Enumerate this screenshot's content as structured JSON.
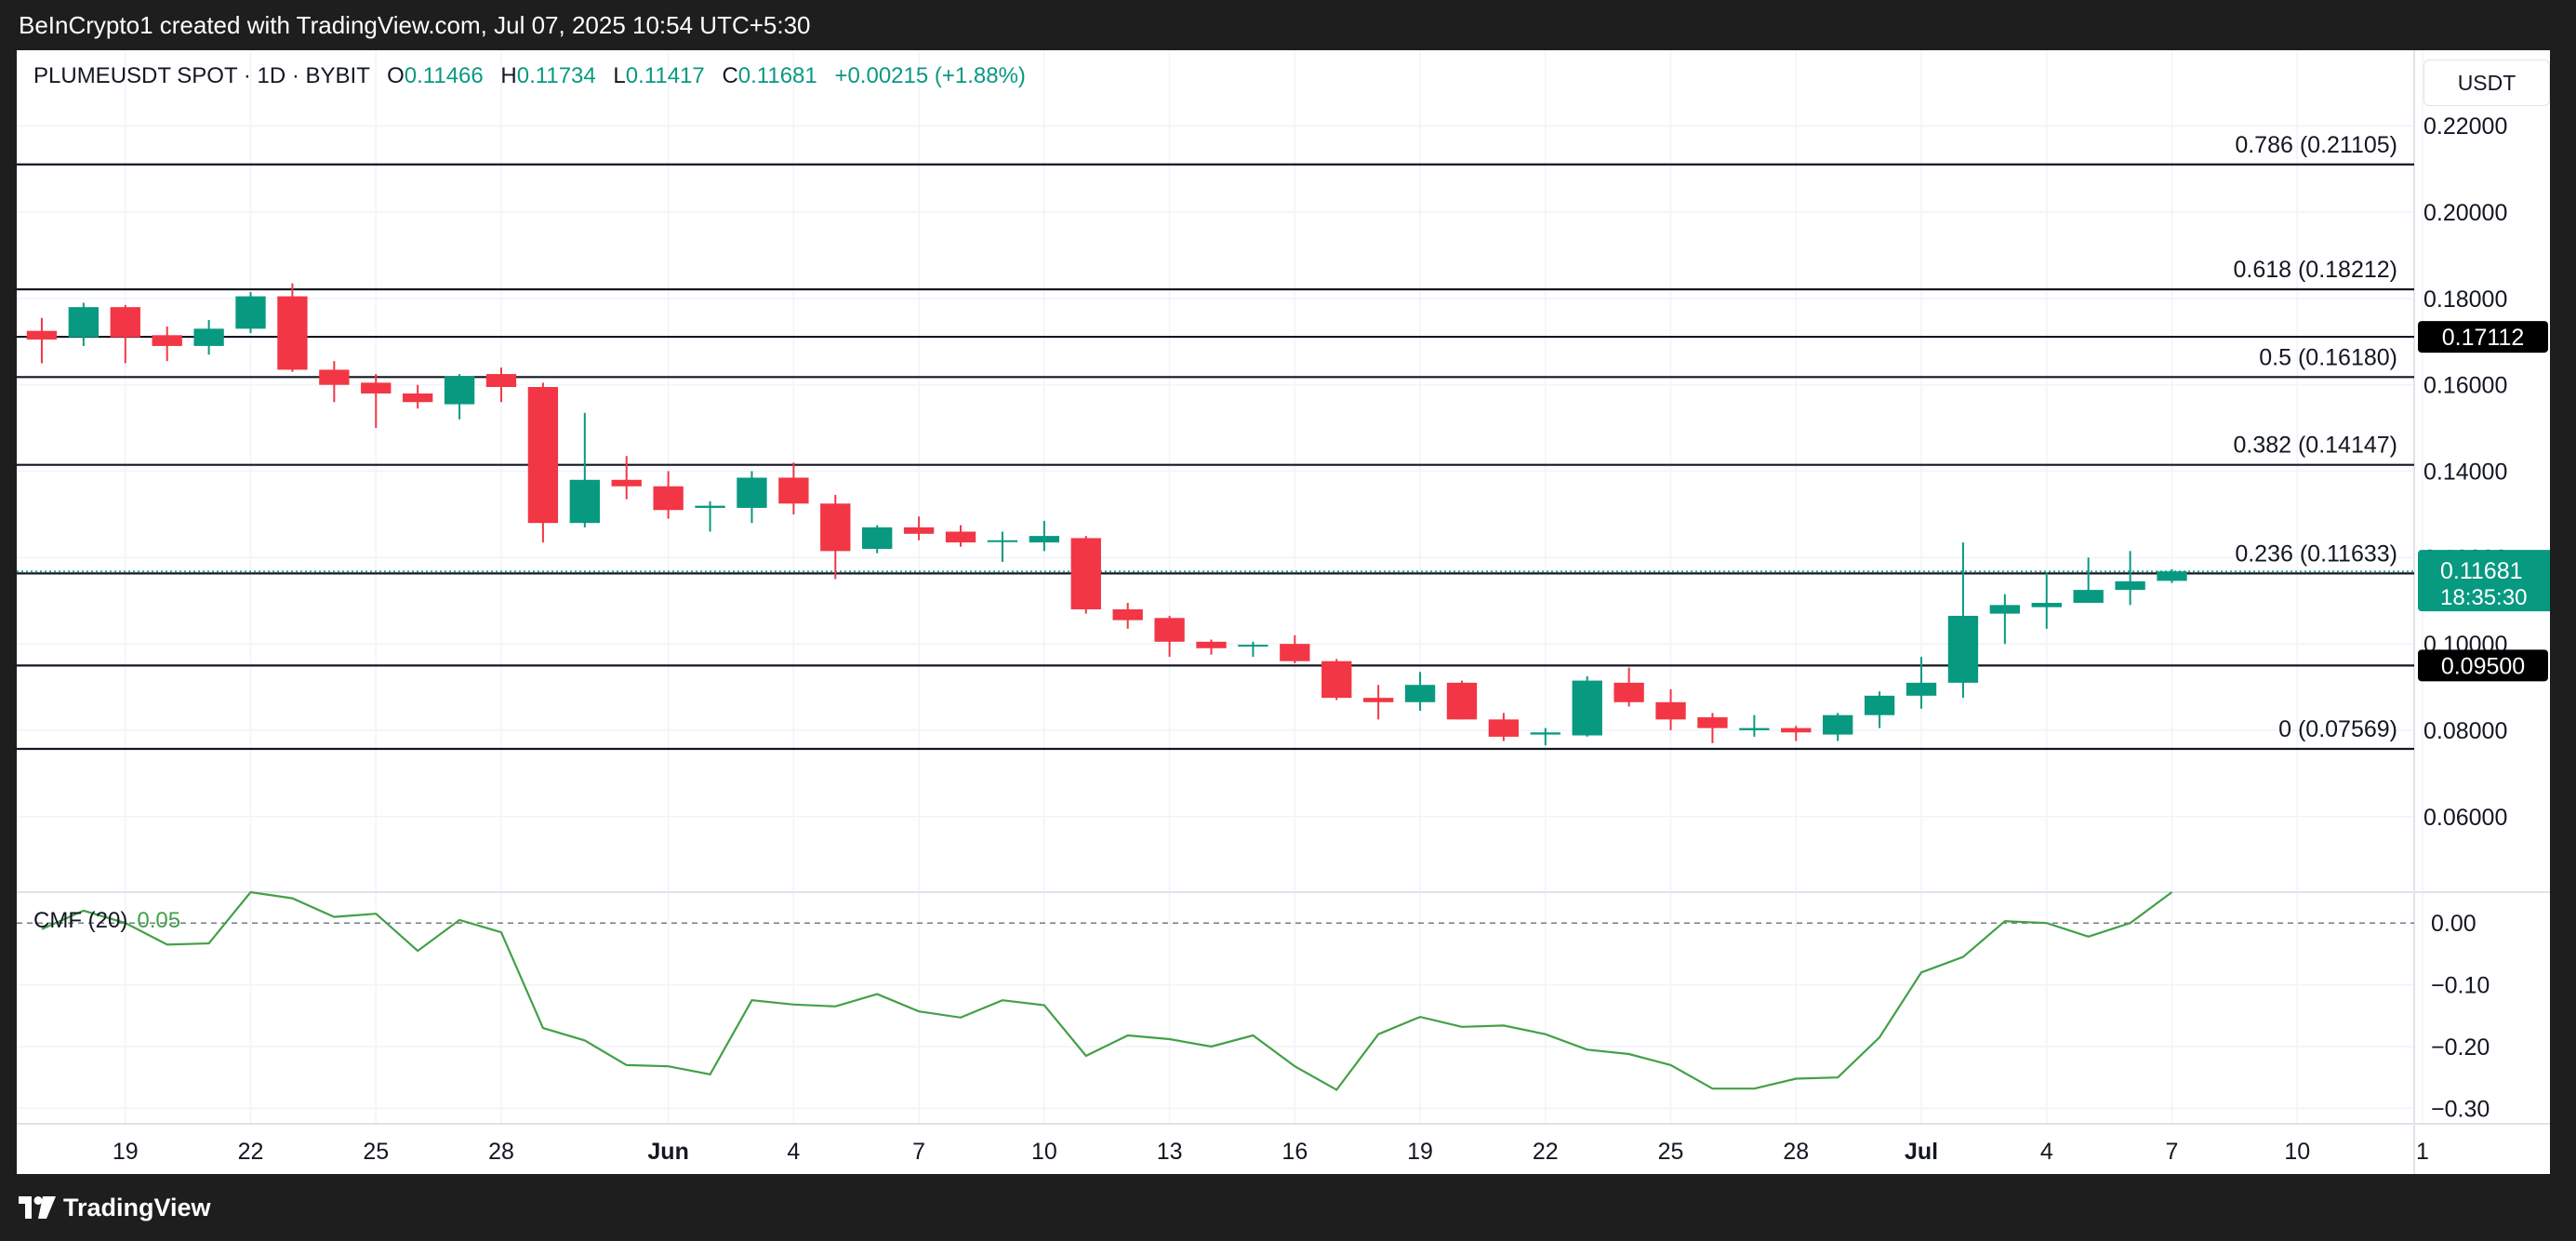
{
  "header": {
    "attribution": "BeInCrypto1 created with TradingView.com, Jul 07, 2025 10:54 UTC+5:30"
  },
  "footer": {
    "brand": "TradingView"
  },
  "legend": {
    "symbol": "PLUMEUSDT SPOT · 1D · BYBIT",
    "o_label": "O",
    "o_value": "0.11466",
    "h_label": "H",
    "h_value": "0.11734",
    "l_label": "L",
    "l_value": "0.11417",
    "c_label": "C",
    "c_value": "0.11681",
    "change": "+0.00215 (+1.88%)"
  },
  "currency_button": "USDT",
  "colors": {
    "up": "#089981",
    "down": "#f23645",
    "cmf": "#43a047",
    "text": "#131722",
    "grid": "#f0f3fa"
  },
  "chart_data": [
    {
      "type": "candlestick",
      "title": "PLUMEUSDT SPOT · 1D · BYBIT",
      "x_ticks": [
        {
          "label": "19",
          "t": 2,
          "bold": false
        },
        {
          "label": "22",
          "t": 5,
          "bold": false
        },
        {
          "label": "25",
          "t": 8,
          "bold": false
        },
        {
          "label": "28",
          "t": 11,
          "bold": false
        },
        {
          "label": "Jun",
          "t": 15,
          "bold": true
        },
        {
          "label": "4",
          "t": 18,
          "bold": false
        },
        {
          "label": "7",
          "t": 21,
          "bold": false
        },
        {
          "label": "10",
          "t": 24,
          "bold": false
        },
        {
          "label": "13",
          "t": 27,
          "bold": false
        },
        {
          "label": "16",
          "t": 30,
          "bold": false
        },
        {
          "label": "19",
          "t": 33,
          "bold": false
        },
        {
          "label": "22",
          "t": 36,
          "bold": false
        },
        {
          "label": "25",
          "t": 39,
          "bold": false
        },
        {
          "label": "28",
          "t": 42,
          "bold": false
        },
        {
          "label": "Jul",
          "t": 45,
          "bold": true
        },
        {
          "label": "4",
          "t": 48,
          "bold": false
        },
        {
          "label": "7",
          "t": 51,
          "bold": false
        },
        {
          "label": "10",
          "t": 54,
          "bold": false
        },
        {
          "label": "1",
          "t": 57,
          "bold": false
        }
      ],
      "y_ticks": [
        "0.22000",
        "0.20000",
        "0.18000",
        "0.16000",
        "0.14000",
        "0.12000",
        "0.10000",
        "0.08000",
        "0.06000"
      ],
      "ylim": [
        0.0425,
        0.2375
      ],
      "xlim": [
        -0.6,
        56.8
      ],
      "candles": [
        {
          "t": 0,
          "o": 0.1725,
          "h": 0.1755,
          "l": 0.165,
          "c": 0.1705
        },
        {
          "t": 1,
          "o": 0.171,
          "h": 0.179,
          "l": 0.169,
          "c": 0.178
        },
        {
          "t": 2,
          "o": 0.178,
          "h": 0.1785,
          "l": 0.165,
          "c": 0.171
        },
        {
          "t": 3,
          "o": 0.1715,
          "h": 0.1735,
          "l": 0.1655,
          "c": 0.169
        },
        {
          "t": 4,
          "o": 0.169,
          "h": 0.175,
          "l": 0.167,
          "c": 0.173
        },
        {
          "t": 5,
          "o": 0.173,
          "h": 0.1815,
          "l": 0.172,
          "c": 0.1805
        },
        {
          "t": 6,
          "o": 0.1805,
          "h": 0.1835,
          "l": 0.163,
          "c": 0.1635
        },
        {
          "t": 7,
          "o": 0.1635,
          "h": 0.1655,
          "l": 0.156,
          "c": 0.16
        },
        {
          "t": 8,
          "o": 0.1605,
          "h": 0.1625,
          "l": 0.15,
          "c": 0.158
        },
        {
          "t": 9,
          "o": 0.158,
          "h": 0.16,
          "l": 0.1545,
          "c": 0.156
        },
        {
          "t": 10,
          "o": 0.1555,
          "h": 0.1625,
          "l": 0.152,
          "c": 0.162
        },
        {
          "t": 11,
          "o": 0.1625,
          "h": 0.164,
          "l": 0.156,
          "c": 0.1595
        },
        {
          "t": 12,
          "o": 0.1595,
          "h": 0.1605,
          "l": 0.1235,
          "c": 0.128
        },
        {
          "t": 13,
          "o": 0.128,
          "h": 0.1535,
          "l": 0.127,
          "c": 0.138
        },
        {
          "t": 14,
          "o": 0.138,
          "h": 0.1435,
          "l": 0.1335,
          "c": 0.1365
        },
        {
          "t": 15,
          "o": 0.1365,
          "h": 0.14,
          "l": 0.129,
          "c": 0.131
        },
        {
          "t": 16,
          "o": 0.1315,
          "h": 0.133,
          "l": 0.126,
          "c": 0.132
        },
        {
          "t": 17,
          "o": 0.1315,
          "h": 0.14,
          "l": 0.128,
          "c": 0.1385
        },
        {
          "t": 18,
          "o": 0.1385,
          "h": 0.142,
          "l": 0.13,
          "c": 0.1325
        },
        {
          "t": 19,
          "o": 0.1325,
          "h": 0.1345,
          "l": 0.115,
          "c": 0.1215
        },
        {
          "t": 20,
          "o": 0.122,
          "h": 0.1275,
          "l": 0.121,
          "c": 0.127
        },
        {
          "t": 21,
          "o": 0.127,
          "h": 0.1295,
          "l": 0.124,
          "c": 0.1255
        },
        {
          "t": 22,
          "o": 0.126,
          "h": 0.1275,
          "l": 0.1225,
          "c": 0.1235
        },
        {
          "t": 23,
          "o": 0.1238,
          "h": 0.126,
          "l": 0.119,
          "c": 0.124
        },
        {
          "t": 24,
          "o": 0.1235,
          "h": 0.1285,
          "l": 0.1215,
          "c": 0.125
        },
        {
          "t": 25,
          "o": 0.1245,
          "h": 0.125,
          "l": 0.107,
          "c": 0.108
        },
        {
          "t": 26,
          "o": 0.108,
          "h": 0.1095,
          "l": 0.1035,
          "c": 0.1055
        },
        {
          "t": 27,
          "o": 0.106,
          "h": 0.1065,
          "l": 0.097,
          "c": 0.1005
        },
        {
          "t": 28,
          "o": 0.1005,
          "h": 0.101,
          "l": 0.0975,
          "c": 0.099
        },
        {
          "t": 29,
          "o": 0.0995,
          "h": 0.1005,
          "l": 0.097,
          "c": 0.0998
        },
        {
          "t": 30,
          "o": 0.1,
          "h": 0.102,
          "l": 0.0955,
          "c": 0.096
        },
        {
          "t": 31,
          "o": 0.096,
          "h": 0.0965,
          "l": 0.087,
          "c": 0.0875
        },
        {
          "t": 32,
          "o": 0.0875,
          "h": 0.0905,
          "l": 0.0825,
          "c": 0.0865
        },
        {
          "t": 33,
          "o": 0.0865,
          "h": 0.0935,
          "l": 0.0845,
          "c": 0.0905
        },
        {
          "t": 34,
          "o": 0.091,
          "h": 0.0915,
          "l": 0.0825,
          "c": 0.0825
        },
        {
          "t": 35,
          "o": 0.0825,
          "h": 0.084,
          "l": 0.0775,
          "c": 0.0785
        },
        {
          "t": 36,
          "o": 0.079,
          "h": 0.0805,
          "l": 0.0765,
          "c": 0.0795
        },
        {
          "t": 37,
          "o": 0.0788,
          "h": 0.0925,
          "l": 0.0785,
          "c": 0.0915
        },
        {
          "t": 38,
          "o": 0.091,
          "h": 0.0945,
          "l": 0.0855,
          "c": 0.0865
        },
        {
          "t": 39,
          "o": 0.0865,
          "h": 0.0895,
          "l": 0.08,
          "c": 0.0825
        },
        {
          "t": 40,
          "o": 0.083,
          "h": 0.084,
          "l": 0.077,
          "c": 0.0805
        },
        {
          "t": 41,
          "o": 0.08,
          "h": 0.0835,
          "l": 0.0785,
          "c": 0.0805
        },
        {
          "t": 42,
          "o": 0.0805,
          "h": 0.081,
          "l": 0.0775,
          "c": 0.0795
        },
        {
          "t": 43,
          "o": 0.079,
          "h": 0.084,
          "l": 0.0775,
          "c": 0.0835
        },
        {
          "t": 44,
          "o": 0.0835,
          "h": 0.089,
          "l": 0.0805,
          "c": 0.088
        },
        {
          "t": 45,
          "o": 0.088,
          "h": 0.097,
          "l": 0.085,
          "c": 0.091
        },
        {
          "t": 46,
          "o": 0.091,
          "h": 0.1235,
          "l": 0.0875,
          "c": 0.1065
        },
        {
          "t": 47,
          "o": 0.107,
          "h": 0.1115,
          "l": 0.1,
          "c": 0.109
        },
        {
          "t": 48,
          "o": 0.1085,
          "h": 0.1165,
          "l": 0.1035,
          "c": 0.1095
        },
        {
          "t": 49,
          "o": 0.1095,
          "h": 0.12,
          "l": 0.1095,
          "c": 0.1125
        },
        {
          "t": 50,
          "o": 0.1125,
          "h": 0.1215,
          "l": 0.109,
          "c": 0.1145
        },
        {
          "t": 51,
          "o": 0.1146,
          "h": 0.1173,
          "l": 0.1141,
          "c": 0.1168
        }
      ],
      "fib_levels": [
        {
          "label": "0.786 (0.21105)",
          "value": 0.21105
        },
        {
          "label": "0.618 (0.18212)",
          "value": 0.18212
        },
        {
          "label": "0.5 (0.16180)",
          "value": 0.1618
        },
        {
          "label": "0.382 (0.14147)",
          "value": 0.14147
        },
        {
          "label": "0.236 (0.11633)",
          "value": 0.11633
        },
        {
          "label": "0 (0.07569)",
          "value": 0.07569
        }
      ],
      "horizontal_lines": [
        {
          "value": 0.17112,
          "badge": "0.17112"
        },
        {
          "value": 0.095,
          "badge": "0.09500"
        }
      ],
      "current_price": {
        "value": 0.11681,
        "label": "0.11681",
        "countdown": "18:35:30"
      }
    },
    {
      "type": "line",
      "title": "CMF (20)",
      "current": "0.05",
      "y_ticks": [
        "0.00",
        "−0.10",
        "−0.20",
        "−0.30"
      ],
      "ylim": [
        -0.325,
        0.05
      ],
      "zero_line": 0,
      "series": [
        {
          "name": "CMF (20)",
          "values": [
            -0.01,
            0.02,
            0.0,
            -0.035,
            -0.033,
            0.05,
            0.04,
            0.01,
            0.015,
            -0.045,
            0.005,
            -0.015,
            -0.17,
            -0.19,
            -0.23,
            -0.232,
            -0.245,
            -0.125,
            -0.132,
            -0.135,
            -0.115,
            -0.143,
            -0.153,
            -0.125,
            -0.133,
            -0.215,
            -0.182,
            -0.188,
            -0.2,
            -0.182,
            -0.232,
            -0.27,
            -0.18,
            -0.152,
            -0.168,
            -0.166,
            -0.18,
            -0.205,
            -0.212,
            -0.23,
            -0.268,
            -0.268,
            -0.252,
            -0.25,
            -0.185,
            -0.08,
            -0.055,
            0.003,
            0.0,
            -0.022,
            0.0,
            0.05
          ]
        }
      ]
    }
  ]
}
